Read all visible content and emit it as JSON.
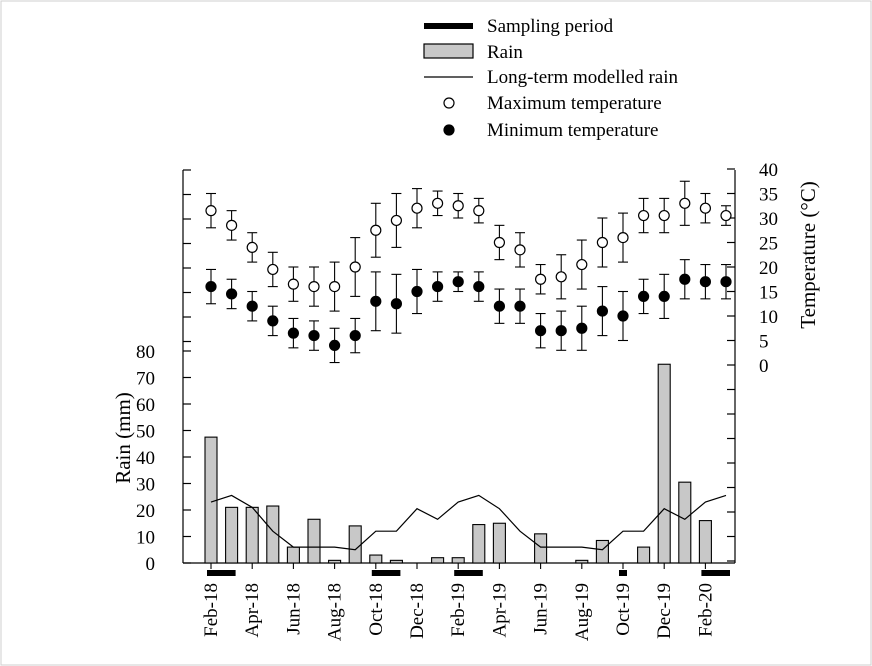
{
  "chart_data": {
    "type": "bar",
    "xlabels": [
      "Feb-18",
      "Apr-18",
      "Jun-18",
      "Aug-18",
      "Oct-18",
      "Dec-18",
      "Feb-19",
      "Apr-19",
      "Jun-19",
      "Aug-19",
      "Oct-19",
      "Dec-19",
      "Feb-20"
    ],
    "legend": {
      "sampling": "Sampling period",
      "rain": "Rain",
      "modelled": "Long-term modelled rain",
      "tmax": "Maximum temperature",
      "tmin": "Minimum temperature"
    },
    "left_axis": {
      "title": "Rain (mm)",
      "range": [
        0,
        80
      ],
      "ticks": [
        "0",
        "10",
        "20",
        "30",
        "40",
        "50",
        "60",
        "70",
        "80"
      ]
    },
    "right_axis": {
      "title": "Temperature (°C)",
      "range": [
        0,
        40
      ],
      "ticks": [
        "0",
        "5",
        "10",
        "15",
        "20",
        "25",
        "30",
        "35",
        "40"
      ]
    },
    "series": {
      "rain": [
        47.5,
        21,
        21,
        21.5,
        6,
        16.5,
        1,
        14,
        3,
        1,
        0,
        2,
        2,
        14.5,
        15,
        0,
        11,
        0,
        1,
        8.5,
        0,
        6,
        75,
        30.5,
        16
      ],
      "modelled": [
        23,
        25.5,
        21,
        12,
        6,
        6,
        6,
        5,
        12,
        12,
        20.5,
        16.5,
        23,
        25.5,
        20.5,
        12,
        6,
        6,
        6,
        5,
        12,
        12,
        20.5,
        16.5,
        23,
        25.5
      ],
      "tmax": [
        31.5,
        28.5,
        24,
        19.5,
        16.5,
        16,
        16,
        20,
        27.5,
        29.5,
        32,
        33,
        32.5,
        31.5,
        25,
        23.5,
        17.5,
        18,
        20.5,
        25,
        26,
        30.5,
        30.5,
        33,
        32,
        30.5
      ],
      "tmax_err": [
        3.5,
        3,
        3,
        3.5,
        3.5,
        4,
        5,
        6,
        5.5,
        5.5,
        4,
        2.5,
        2.5,
        2.5,
        3.5,
        3.5,
        3,
        4.5,
        5,
        5,
        5,
        3.5,
        3.5,
        4.5,
        3,
        2
      ],
      "tmin": [
        16,
        14.5,
        12,
        9,
        6.5,
        6,
        4,
        6,
        13,
        12.5,
        15,
        16,
        17,
        16,
        12,
        12,
        7,
        7,
        7.5,
        11,
        10,
        14,
        14,
        17.5,
        17,
        17
      ],
      "tmin_err": [
        3.5,
        3,
        3,
        3,
        3,
        3,
        3.5,
        3.5,
        6,
        6,
        4.5,
        3,
        2,
        3,
        3.5,
        3.5,
        3.5,
        4,
        4.5,
        5,
        5,
        3.5,
        4.5,
        4,
        3.5,
        3.5
      ],
      "sampling_periods": [
        [
          0,
          1
        ],
        [
          8,
          9
        ],
        [
          12,
          13
        ],
        [
          20,
          20
        ],
        [
          24,
          25
        ]
      ]
    }
  }
}
